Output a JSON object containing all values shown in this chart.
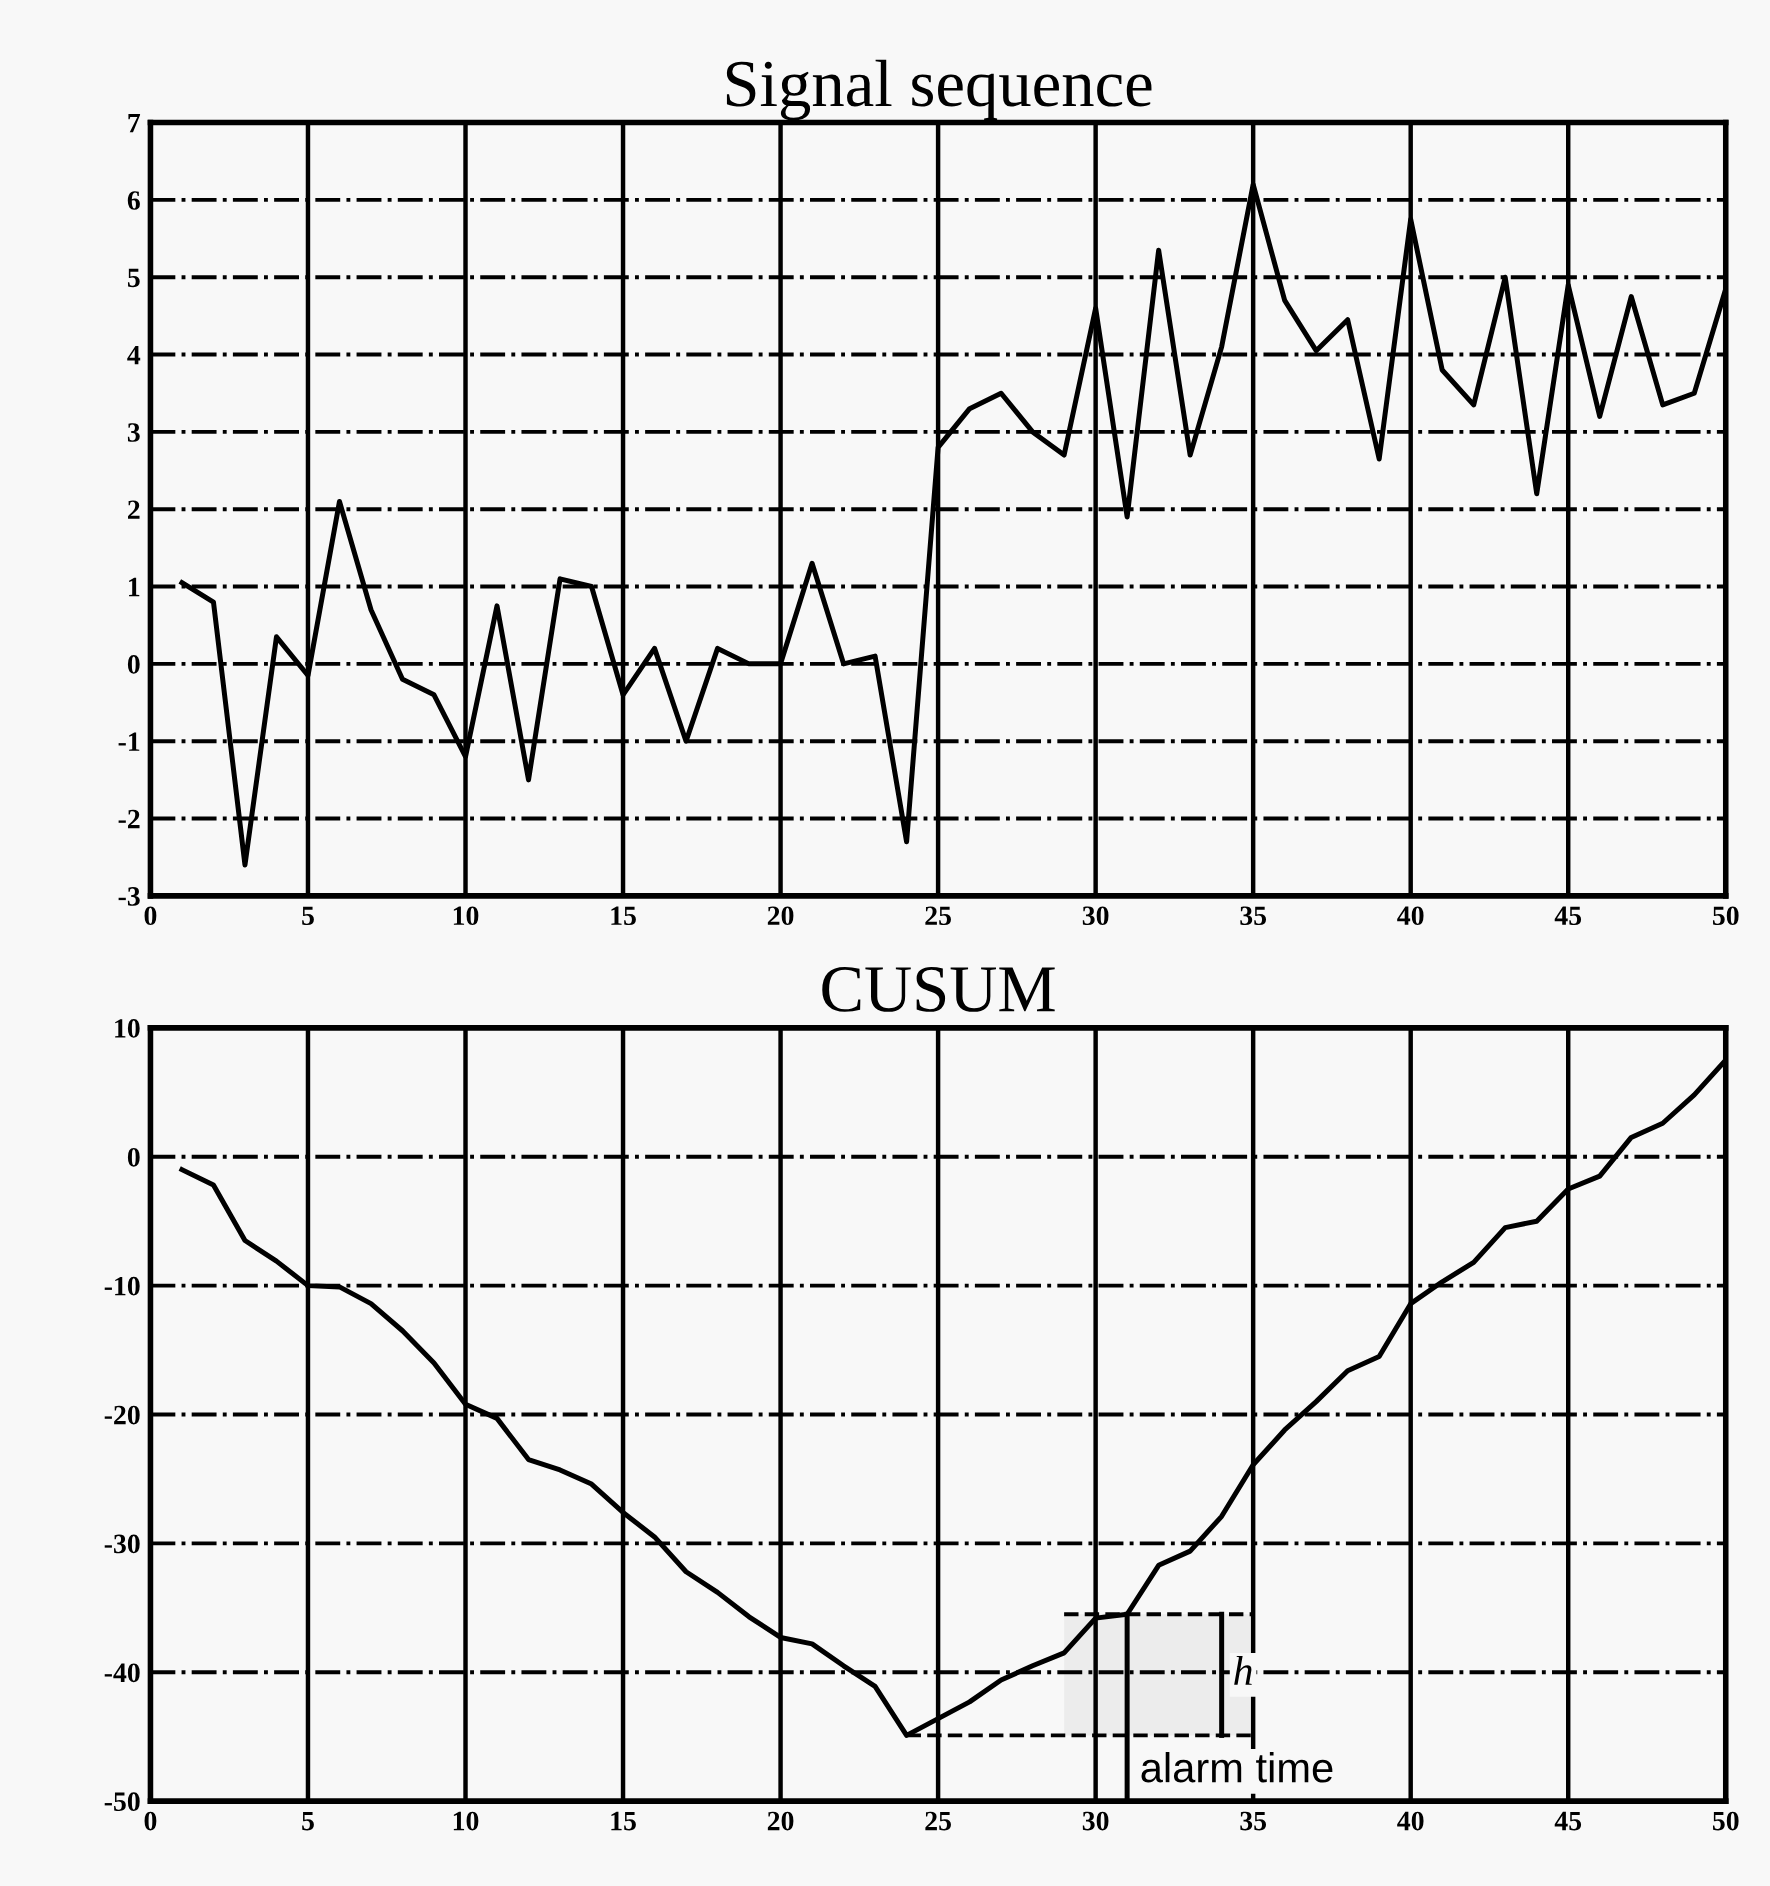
{
  "chart_data": [
    {
      "type": "line",
      "title": "Signal sequence",
      "x": [
        1,
        2,
        3,
        4,
        5,
        6,
        7,
        8,
        9,
        10,
        11,
        12,
        13,
        14,
        15,
        16,
        17,
        18,
        19,
        20,
        21,
        22,
        23,
        24,
        25,
        26,
        27,
        28,
        29,
        30,
        31,
        32,
        33,
        34,
        35,
        36,
        37,
        38,
        39,
        40,
        41,
        42,
        43,
        44,
        45,
        46,
        47,
        48,
        49,
        50
      ],
      "series": [
        {
          "color": "#000000",
          "values": [
            1.05,
            0.8,
            -2.6,
            0.35,
            -0.15,
            2.1,
            0.7,
            -0.2,
            -0.4,
            -1.2,
            0.75,
            -1.5,
            1.1,
            1.0,
            -0.4,
            0.2,
            -1.0,
            0.2,
            0.0,
            0.0,
            1.3,
            0.0,
            0.1,
            -2.3,
            2.8,
            3.3,
            3.5,
            3.0,
            2.7,
            4.6,
            1.9,
            5.35,
            2.7,
            4.1,
            6.2,
            4.7,
            4.05,
            4.45,
            2.65,
            5.75,
            3.8,
            3.35,
            5.0,
            2.2,
            4.9,
            3.2,
            4.75,
            3.35,
            3.5,
            4.85
          ]
        }
      ],
      "xlim": [
        0,
        50
      ],
      "xticks": [
        0,
        5,
        10,
        15,
        20,
        25,
        30,
        35,
        40,
        45,
        50
      ],
      "ylim": [
        -3,
        7
      ],
      "yticks": [
        -3,
        -2,
        -1,
        0,
        1,
        2,
        3,
        4,
        5,
        6,
        7
      ],
      "grid": true,
      "marker": "none",
      "line_style": "solid"
    },
    {
      "type": "line",
      "title": "CUSUM",
      "x": [
        1,
        2,
        3,
        4,
        5,
        6,
        7,
        8,
        9,
        10,
        11,
        12,
        13,
        14,
        15,
        16,
        17,
        18,
        19,
        20,
        21,
        22,
        23,
        24,
        25,
        26,
        27,
        28,
        29,
        30,
        31,
        32,
        33,
        34,
        35,
        36,
        37,
        38,
        39,
        40,
        41,
        42,
        43,
        44,
        45,
        46,
        47,
        48,
        49,
        50
      ],
      "series": [
        {
          "color": "#000000",
          "values": [
            -1,
            -2.2,
            -6.5,
            -8.1,
            -10,
            -10.1,
            -11.4,
            -13.5,
            -16,
            -19.2,
            -20.3,
            -23.5,
            -24.3,
            -25.4,
            -27.6,
            -29.5,
            -32.2,
            -33.8,
            -35.7,
            -37.3,
            -37.8,
            -39.5,
            -41.1,
            -44.9,
            -43.6,
            -42.3,
            -40.6,
            -39.5,
            -38.5,
            -35.8,
            -35.5,
            -31.7,
            -30.6,
            -27.9,
            -23.9,
            -21.2,
            -19,
            -16.6,
            -15.5,
            -11.4,
            -9.7,
            -8.2,
            -5.5,
            -5,
            -2.5,
            -1.5,
            1.5,
            2.6,
            4.8,
            7.5
          ]
        }
      ],
      "xlim": [
        0,
        50
      ],
      "xticks": [
        0,
        5,
        10,
        15,
        20,
        25,
        30,
        35,
        40,
        45,
        50
      ],
      "ylim": [
        -50,
        10
      ],
      "yticks": [
        -50,
        -40,
        -30,
        -20,
        -10,
        0,
        10
      ],
      "grid": true,
      "marker": "none",
      "line_style": "solid",
      "bands": [
        {
          "axis": "y",
          "from": -44.9,
          "to": -35.5,
          "label": "h"
        }
      ],
      "ref_lines": [
        {
          "axis": "x",
          "value": 31,
          "label": "alarm time",
          "color": "#000000",
          "line_style": "solid"
        }
      ]
    }
  ]
}
